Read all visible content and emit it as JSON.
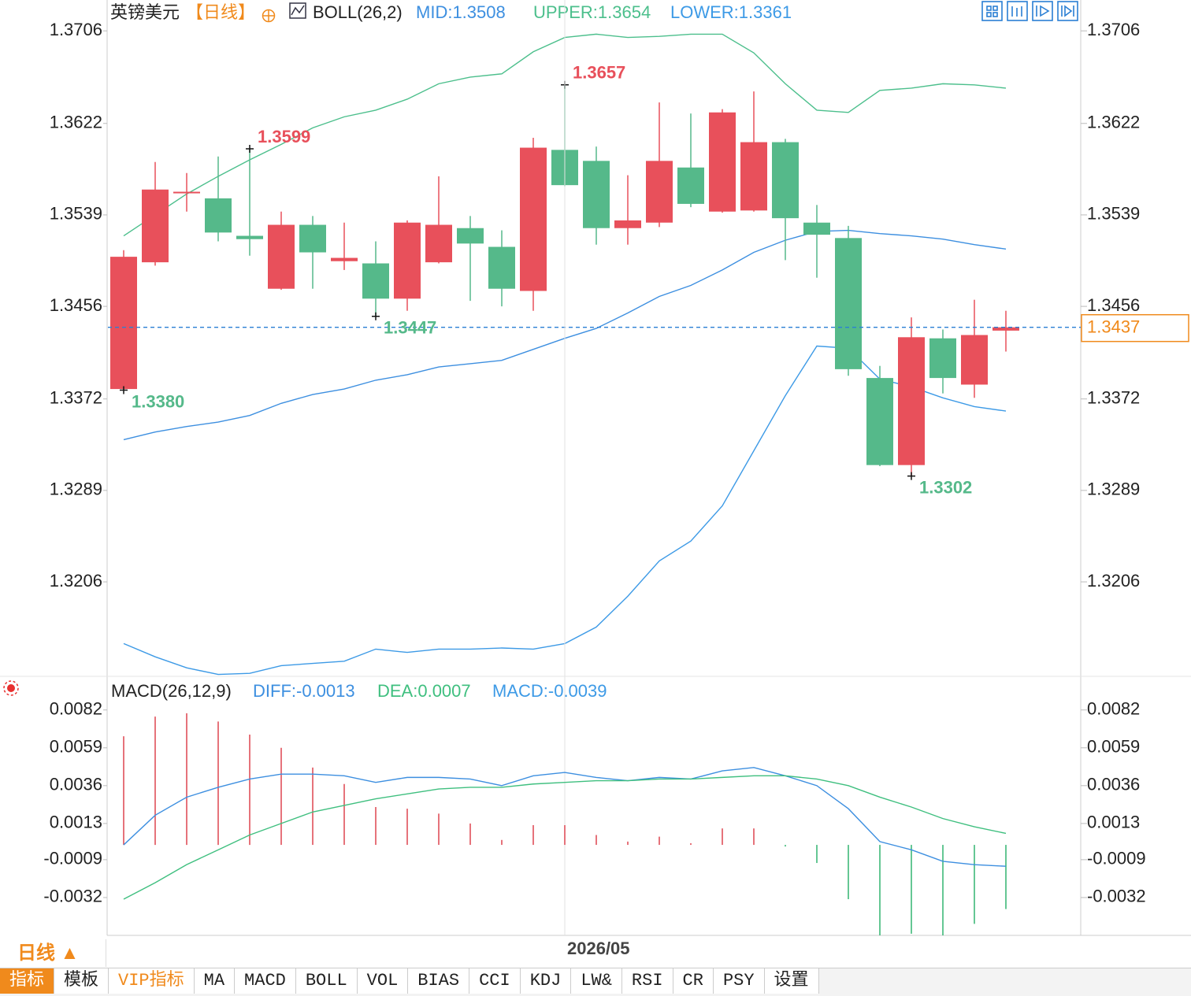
{
  "chart_data": [
    {
      "type": "candlestick",
      "title": "英镑美元",
      "period": "【日线】",
      "indicator": "BOLL(26,2)",
      "ylim": [
        1.3121,
        1.3734
      ],
      "yticks": [
        1.3206,
        1.3289,
        1.3372,
        1.3456,
        1.3539,
        1.3622,
        1.3706
      ],
      "up_color": "#e8505b",
      "down_color": "#55b98a",
      "grid": false,
      "open": [
        1.3381,
        1.3496,
        1.3559,
        1.3554,
        1.352,
        1.3472,
        1.353,
        1.3497,
        1.3495,
        1.3463,
        1.3496,
        1.3527,
        1.351,
        1.347,
        1.3598,
        1.3588,
        1.3527,
        1.3532,
        1.3582,
        1.3542,
        1.3543,
        1.3605,
        1.3532,
        1.3518,
        1.3391,
        1.3312,
        1.3427,
        1.3385,
        1.3434
      ],
      "high": [
        1.3507,
        1.3587,
        1.3577,
        1.3592,
        1.3599,
        1.3542,
        1.3538,
        1.3532,
        1.3515,
        1.3534,
        1.3574,
        1.3538,
        1.3525,
        1.3609,
        1.3657,
        1.3601,
        1.3575,
        1.3641,
        1.3631,
        1.3635,
        1.3651,
        1.3608,
        1.3548,
        1.3529,
        1.3402,
        1.3446,
        1.3435,
        1.3462,
        1.3452
      ],
      "low": [
        1.338,
        1.3493,
        1.3542,
        1.3515,
        1.3502,
        1.3471,
        1.3472,
        1.3489,
        1.3447,
        1.3452,
        1.3495,
        1.3461,
        1.3456,
        1.3452,
        1.3565,
        1.3512,
        1.3512,
        1.3528,
        1.3546,
        1.3541,
        1.3542,
        1.3498,
        1.3482,
        1.3393,
        1.3311,
        1.3302,
        1.3377,
        1.3373,
        1.3415
      ],
      "close": [
        1.3501,
        1.3562,
        1.356,
        1.3523,
        1.3517,
        1.353,
        1.3505,
        1.35,
        1.3463,
        1.3532,
        1.353,
        1.3513,
        1.3472,
        1.36,
        1.3566,
        1.3527,
        1.3534,
        1.3588,
        1.3549,
        1.3632,
        1.3605,
        1.3536,
        1.3521,
        1.3399,
        1.3312,
        1.3428,
        1.3391,
        1.343,
        1.3437
      ],
      "series": [
        {
          "name": "MID:1.3508",
          "color": "#3d8fe0",
          "values": [
            1.3335,
            1.3342,
            1.3347,
            1.3351,
            1.3357,
            1.3368,
            1.3376,
            1.3381,
            1.3389,
            1.3394,
            1.3401,
            1.3404,
            1.3407,
            1.3417,
            1.3427,
            1.3436,
            1.345,
            1.3465,
            1.3475,
            1.3489,
            1.3505,
            1.3516,
            1.3524,
            1.3525,
            1.3522,
            1.352,
            1.3517,
            1.3512,
            1.3508
          ]
        },
        {
          "name": "UPPER:1.3654",
          "color": "#4cbf8c",
          "values": [
            1.352,
            1.3539,
            1.3558,
            1.3574,
            1.3589,
            1.3603,
            1.3618,
            1.3628,
            1.3634,
            1.3644,
            1.3658,
            1.3664,
            1.3667,
            1.3687,
            1.37,
            1.3703,
            1.37,
            1.3701,
            1.3703,
            1.3703,
            1.3686,
            1.3658,
            1.3634,
            1.3632,
            1.3652,
            1.3654,
            1.3658,
            1.3657,
            1.3654
          ]
        },
        {
          "name": "LOWER:1.3361",
          "color": "#3d9ae6",
          "values": [
            1.315,
            1.3138,
            1.3128,
            1.3122,
            1.3123,
            1.313,
            1.3132,
            1.3134,
            1.3145,
            1.3142,
            1.3145,
            1.3145,
            1.3146,
            1.3145,
            1.315,
            1.3165,
            1.3193,
            1.3225,
            1.3243,
            1.3275,
            1.3325,
            1.3375,
            1.342,
            1.3418,
            1.339,
            1.3383,
            1.3373,
            1.3365,
            1.3361
          ]
        }
      ],
      "annotations": [
        {
          "label": "1.3599",
          "value": 1.3599
        },
        {
          "label": "1.3657",
          "value": 1.3657
        },
        {
          "label": "1.3447",
          "value": 1.3447
        },
        {
          "label": "1.3380",
          "value": 1.338
        },
        {
          "label": "1.3302",
          "value": 1.3302
        }
      ]
    },
    {
      "type": "macd",
      "title": "MACD(26,12,9)",
      "ylim": [
        -0.0055,
        0.0101
      ],
      "yticks": [
        -0.0032,
        -0.0009,
        0.0013,
        0.0036,
        0.0059,
        0.0082
      ],
      "categories": [
        null,
        null,
        null,
        null,
        null,
        null,
        null,
        null,
        null,
        null,
        null,
        null,
        null,
        null,
        "2026/05",
        null,
        null,
        null,
        null,
        null,
        null,
        null,
        null,
        null,
        null,
        null,
        null,
        null,
        null
      ],
      "series": [
        {
          "name": "DIFF:-0.0013",
          "color": "#3d8fe0",
          "values": [
            0,
            0.0018,
            0.0029,
            0.0035,
            0.004,
            0.0043,
            0.0043,
            0.0042,
            0.0038,
            0.0041,
            0.0041,
            0.004,
            0.0036,
            0.0042,
            0.0044,
            0.0041,
            0.0039,
            0.0041,
            0.004,
            0.0045,
            0.0047,
            0.0042,
            0.0036,
            0.0022,
            0.0002,
            -0.0003,
            -0.001,
            -0.0012,
            -0.0013
          ]
        },
        {
          "name": "DEA:0.0007",
          "color": "#3fbf7f",
          "values": [
            -0.0033,
            -0.0023,
            -0.0012,
            -0.0003,
            0.0006,
            0.0013,
            0.002,
            0.0024,
            0.0028,
            0.0031,
            0.0034,
            0.0035,
            0.0035,
            0.0037,
            0.0038,
            0.0039,
            0.0039,
            0.004,
            0.004,
            0.0041,
            0.0042,
            0.0042,
            0.004,
            0.0036,
            0.0029,
            0.0023,
            0.0016,
            0.0011,
            0.0007
          ]
        },
        {
          "name": "MACD:-0.0039",
          "type": "bar",
          "color": "#3d9ae6",
          "up_color": "#e0505a",
          "down_color": "#3fb97a",
          "values": [
            0.0066,
            0.0078,
            0.008,
            0.0075,
            0.0067,
            0.0059,
            0.0047,
            0.0037,
            0.0023,
            0.0022,
            0.0019,
            0.0013,
            0.0003,
            0.0012,
            0.0012,
            0.0006,
            0.0002,
            0.0005,
            0.0001,
            0.001,
            0.001,
            -0.0001,
            -0.0011,
            -0.0033,
            -0.0055,
            -0.0054,
            -0.0055,
            -0.0048,
            -0.0039
          ]
        }
      ]
    }
  ],
  "toolbar": {
    "period_button": "日线 ▲",
    "tabs": [
      "指标",
      "模板",
      "VIP指标",
      "MA",
      "MACD",
      "BOLL",
      "VOL",
      "BIAS",
      "CCI",
      "KDJ",
      "LW&",
      "RSI",
      "CR",
      "PSY",
      "设置"
    ]
  }
}
